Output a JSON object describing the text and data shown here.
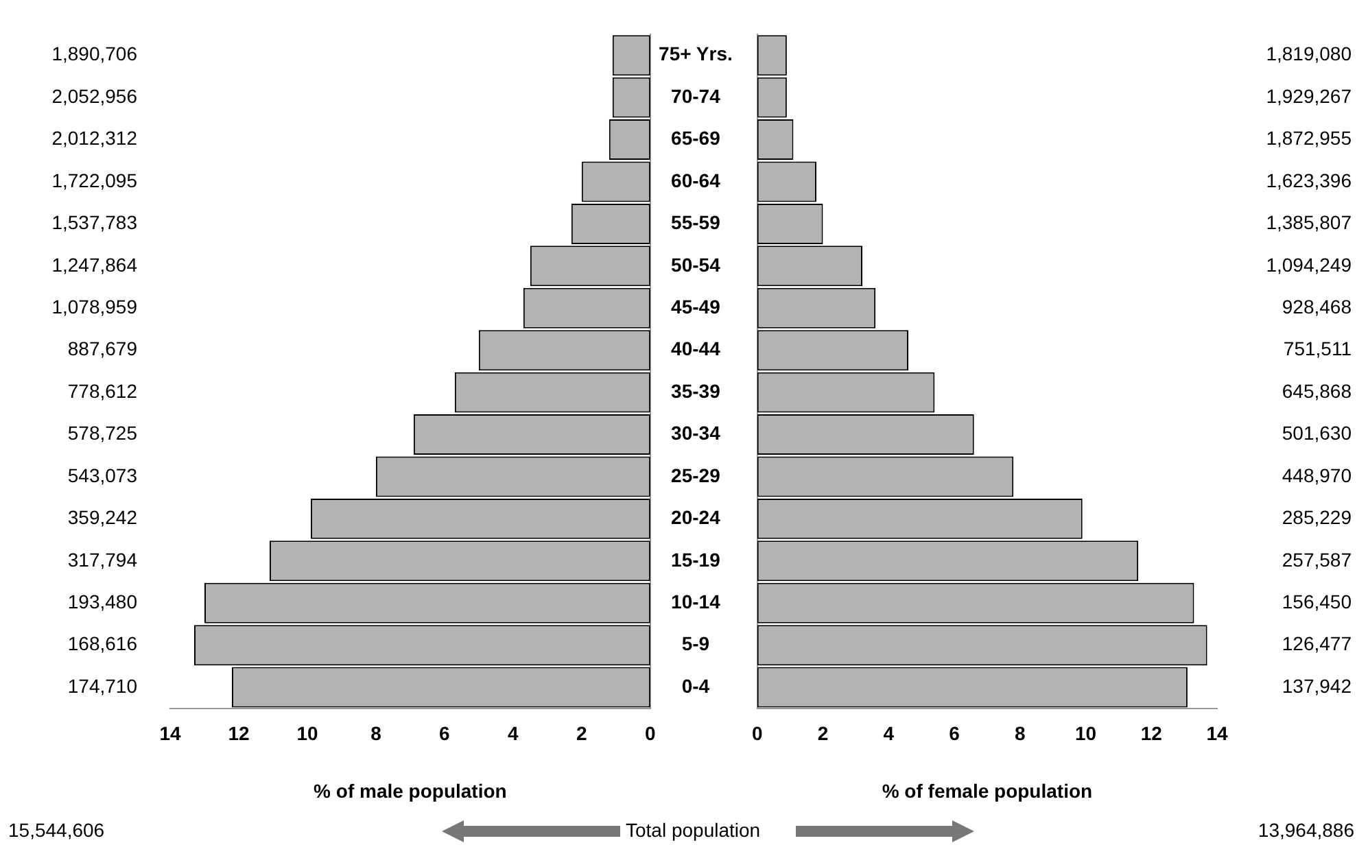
{
  "chart_data": [
    {
      "type": "bar",
      "orientation": "horizontal",
      "xlabel": "% of male population",
      "categories": [
        "75+ Yrs.",
        "70-74",
        "65-69",
        "60-64",
        "55-59",
        "50-54",
        "45-49",
        "40-44",
        "35-39",
        "30-34",
        "25-29",
        "20-24",
        "15-19",
        "10-14",
        "5-9",
        "0-4"
      ],
      "series": [
        {
          "color": "#b3b3b3",
          "values": [
            1.1,
            1.1,
            1.2,
            2.0,
            2.3,
            3.5,
            3.7,
            5.0,
            5.7,
            6.9,
            8.0,
            9.9,
            11.1,
            13.0,
            13.3,
            12.2
          ]
        }
      ],
      "xlim": [
        14,
        0
      ],
      "xticks": [
        14,
        12,
        10,
        8,
        6,
        4,
        2,
        0
      ],
      "grid": false,
      "legend": false,
      "annotations": [
        "1,890,706",
        "2,052,956",
        "2,012,312",
        "1,722,095",
        "1,537,783",
        "1,247,864",
        "1,078,959",
        "887,679",
        "778,612",
        "578,725",
        "543,073",
        "359,242",
        "317,794",
        "193,480",
        "168,616",
        "174,710",
        "15,544,606",
        "Total population"
      ]
    },
    {
      "type": "bar",
      "orientation": "horizontal",
      "xlabel": "% of female population",
      "tick_labels": "x",
      "series": [
        {
          "color": "#b3b3b3",
          "values": [
            0.9,
            0.9,
            1.1,
            1.8,
            2.0,
            3.2,
            3.6,
            4.6,
            5.4,
            6.6,
            7.8,
            9.9,
            11.6,
            13.3,
            13.7,
            13.1
          ]
        }
      ],
      "xlim": [
        0,
        14
      ],
      "xticks": [
        0,
        2,
        4,
        6,
        8,
        10,
        12,
        14
      ],
      "grid": false,
      "legend": false,
      "annotations": [
        "1,819,080",
        "1,929,267",
        "1,872,955",
        "1,623,396",
        "1,385,807",
        "1,094,249",
        "928,468",
        "751,511",
        "645,868",
        "501,630",
        "448,970",
        "285,229",
        "257,587",
        "156,450",
        "126,477",
        "137,942",
        "13,964,886"
      ]
    }
  ]
}
